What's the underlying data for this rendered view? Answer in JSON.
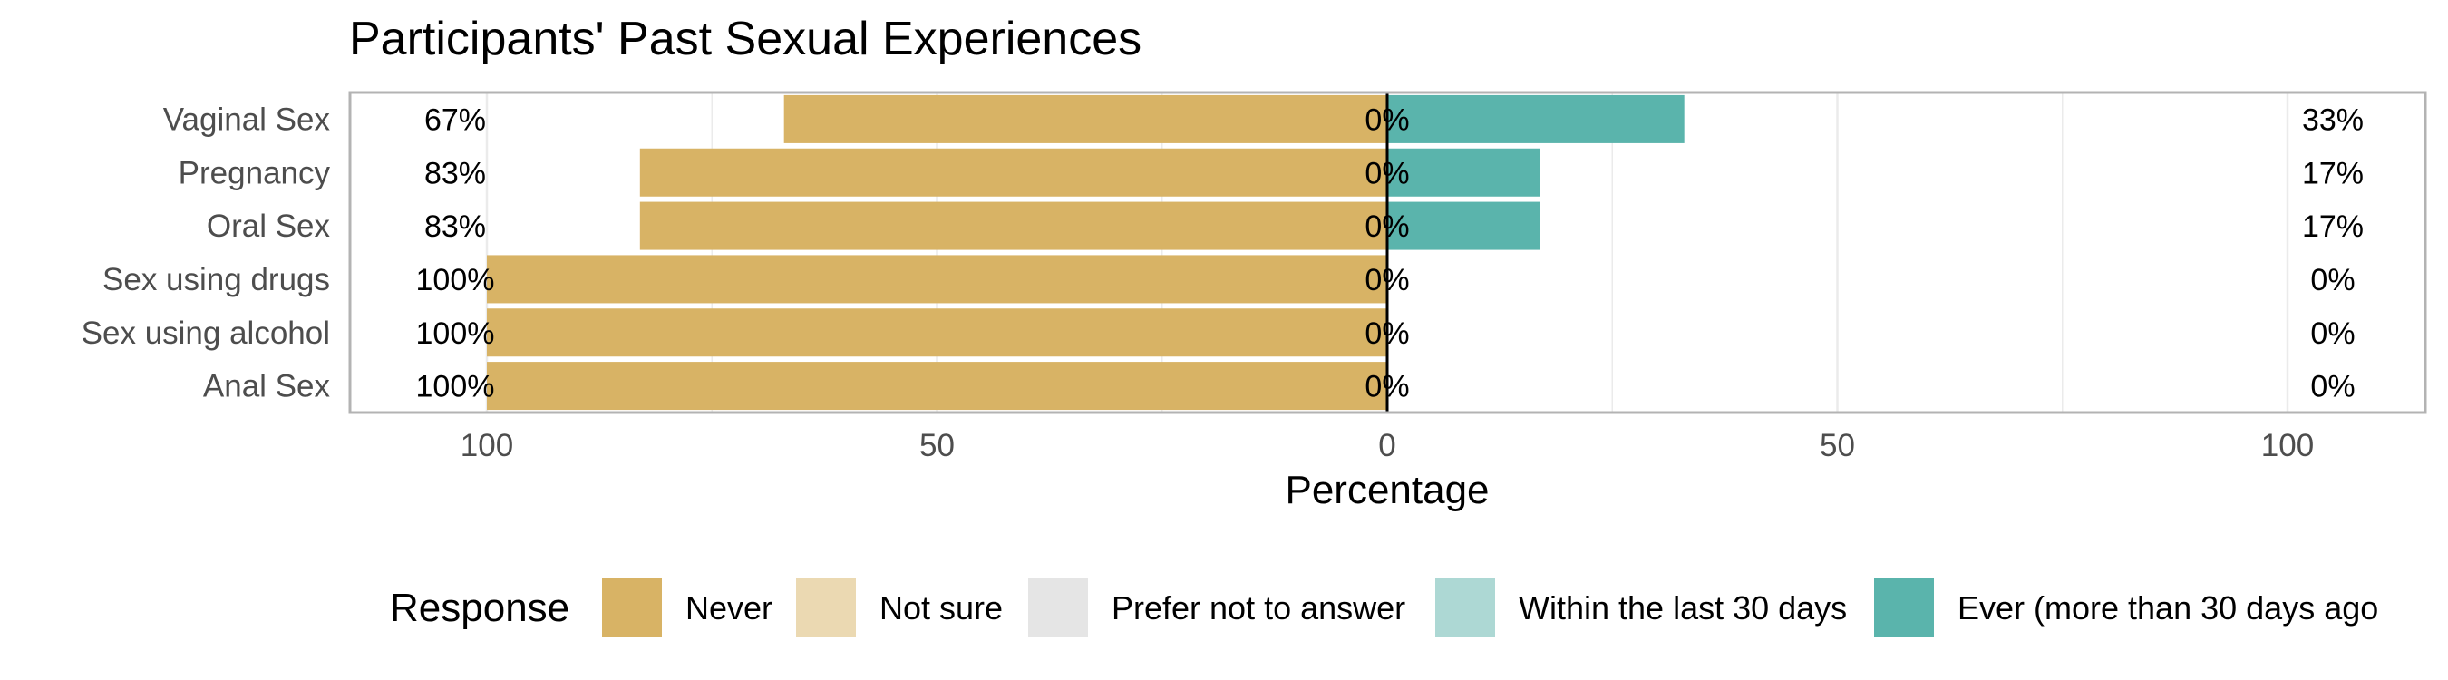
{
  "chart_data": {
    "type": "bar",
    "orientation": "horizontal-diverging",
    "title": "Participants' Past Sexual Experiences",
    "xlabel": "Percentage",
    "ylabel": "",
    "xlim": [
      -100,
      100
    ],
    "x_ticks": [
      {
        "value": -100,
        "label": "100"
      },
      {
        "value": -50,
        "label": "50"
      },
      {
        "value": 0,
        "label": "0"
      },
      {
        "value": 50,
        "label": "50"
      },
      {
        "value": 100,
        "label": "100"
      }
    ],
    "grid": true,
    "categories": [
      "Vaginal Sex",
      "Pregnancy",
      "Oral Sex",
      "Sex using drugs",
      "Sex using alcohol",
      "Anal Sex"
    ],
    "series": [
      {
        "name": "Never",
        "color": "#D8B365",
        "side": "left",
        "values": [
          67,
          83,
          83,
          100,
          100,
          100
        ]
      },
      {
        "name": "Not sure",
        "color": "#EBD9B2",
        "side": "center",
        "values": [
          0,
          0,
          0,
          0,
          0,
          0
        ]
      },
      {
        "name": "Prefer not to answer",
        "color": "#E5E5E5",
        "side": "center",
        "values": [
          0,
          0,
          0,
          0,
          0,
          0
        ]
      },
      {
        "name": "Within the last 30 days",
        "color": "#ADD8D4",
        "side": "right",
        "values": [
          0,
          0,
          0,
          0,
          0,
          0
        ]
      },
      {
        "name": "Ever (more than 30 days ago",
        "color": "#5AB4AC",
        "side": "right",
        "values": [
          33,
          17,
          17,
          0,
          0,
          0
        ]
      }
    ],
    "left_labels": [
      "67%",
      "83%",
      "83%",
      "100%",
      "100%",
      "100%"
    ],
    "center_labels": [
      "0%",
      "0%",
      "0%",
      "0%",
      "0%",
      "0%"
    ],
    "right_labels": [
      "33%",
      "17%",
      "17%",
      "0%",
      "0%",
      "0%"
    ],
    "legend": {
      "title": "Response",
      "position": "bottom",
      "entries": [
        "Never",
        "Not sure",
        "Prefer not to answer",
        "Within the last 30 days",
        "Ever (more than 30 days ago"
      ]
    }
  }
}
